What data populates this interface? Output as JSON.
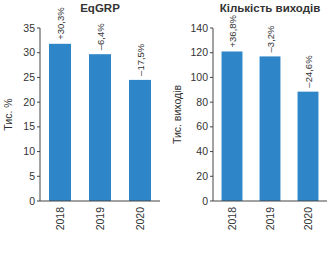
{
  "chart_data": [
    {
      "type": "bar",
      "title": "EqGRP",
      "y_label": "Тис. %",
      "categories": [
        "2018",
        "2019",
        "2020"
      ],
      "values": [
        31.8,
        29.7,
        24.5
      ],
      "annotations": [
        "+30,3%",
        "–6,4%",
        "–17,5%"
      ],
      "color": "#2e86c9",
      "ylim": [
        0,
        35
      ],
      "yticks": [
        0,
        5,
        10,
        15,
        20,
        25,
        30,
        35
      ],
      "grid": false
    },
    {
      "type": "bar",
      "title": "Кількість виходів",
      "y_label": "Тис. виходів",
      "categories": [
        "2018",
        "2019",
        "2020"
      ],
      "values": [
        121,
        117,
        88.5
      ],
      "annotations": [
        "+36,8%",
        "–3,2%",
        "–24,6%"
      ],
      "color": "#2e86c9",
      "ylim": [
        0,
        140
      ],
      "yticks": [
        0,
        20,
        40,
        60,
        80,
        100,
        120,
        140
      ],
      "grid": false
    }
  ]
}
